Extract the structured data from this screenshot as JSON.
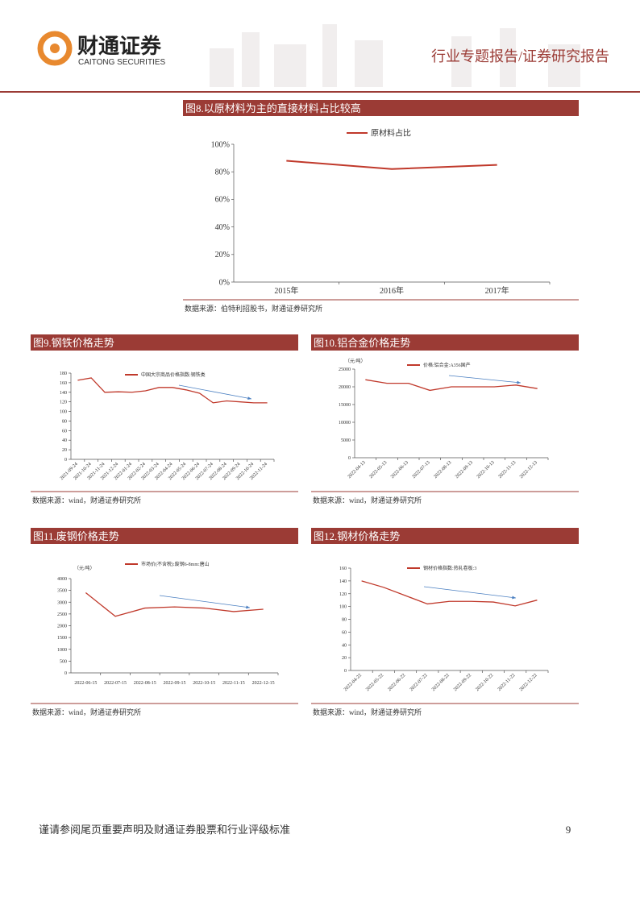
{
  "header": {
    "brand": "财通证券",
    "brand_en": "CAITONG SECURITIES",
    "report_type": "行业专题报告/证券研究报告"
  },
  "chart_data": [
    {
      "type": "line",
      "title": "图8.以原材料为主的直接材料占比较高",
      "source": "数据来源：伯特利招股书，财通证券研究所",
      "categories": [
        "2015年",
        "2016年",
        "2017年"
      ],
      "series": [
        {
          "name": "原材料占比",
          "color": "#c0392b",
          "values": [
            88,
            82,
            85
          ]
        }
      ],
      "ylim": [
        0,
        100
      ],
      "yticks": [
        {
          "value": 0,
          "label": "0%"
        },
        {
          "value": 20,
          "label": "20%"
        },
        {
          "value": 40,
          "label": "40%"
        },
        {
          "value": 60,
          "label": "60%"
        },
        {
          "value": 80,
          "label": "80%"
        },
        {
          "value": 100,
          "label": "100%"
        }
      ]
    },
    {
      "type": "line",
      "title": "图9.钢铁价格走势",
      "source": "数据来源：wind，财通证券研究所",
      "categories": [
        "2021-09-24",
        "2021-10-24",
        "2021-11-24",
        "2021-12-24",
        "2022-01-24",
        "2022-02-24",
        "2022-03-24",
        "2022-04-24",
        "2022-05-24",
        "2022-06-24",
        "2022-07-24",
        "2022-08-24",
        "2022-09-24",
        "2022-10-24",
        "2022-11-24"
      ],
      "series": [
        {
          "name": "中国大宗商品价格指数:钢铁类",
          "color": "#c0392b",
          "values": [
            165,
            170,
            140,
            141,
            140,
            143,
            150,
            150,
            145,
            138,
            118,
            122,
            120,
            118,
            118
          ]
        }
      ],
      "ylim": [
        0,
        180
      ],
      "yticks": [
        0,
        20,
        40,
        60,
        80,
        100,
        120,
        140,
        160,
        180
      ]
    },
    {
      "type": "line",
      "title": "图10.铝合金价格走势",
      "source": "数据来源：wind，财通证券研究所",
      "unit": "（元/吨）",
      "categories": [
        "2022-04-13",
        "2022-05-13",
        "2022-06-13",
        "2022-07-13",
        "2022-08-13",
        "2022-09-13",
        "2022-10-13",
        "2022-11-13",
        "2022-12-13"
      ],
      "series": [
        {
          "name": "价格:铝合金:A356国产",
          "color": "#c0392b",
          "values": [
            22000,
            21000,
            21000,
            19000,
            20000,
            20000,
            20000,
            20500,
            19500
          ]
        }
      ],
      "ylim": [
        0,
        25000
      ],
      "yticks": [
        0,
        5000,
        10000,
        15000,
        20000,
        25000
      ]
    },
    {
      "type": "line",
      "title": "图11.废钢价格走势",
      "source": "数据来源：wind，财通证券研究所",
      "unit": "（元/吨）",
      "categories": [
        "2022-06-15",
        "2022-07-15",
        "2022-08-15",
        "2022-09-15",
        "2022-10-15",
        "2022-11-15",
        "2022-12-15"
      ],
      "series": [
        {
          "name": "市场价(不含税):废钢6-8mm:唐山",
          "color": "#c0392b",
          "values": [
            3400,
            2400,
            2750,
            2800,
            2750,
            2600,
            2700
          ]
        }
      ],
      "ylim": [
        0,
        4000
      ],
      "yticks": [
        0,
        500,
        1000,
        1500,
        2000,
        2500,
        3000,
        3500,
        4000
      ]
    },
    {
      "type": "line",
      "title": "图12.钢材价格走势",
      "source": "数据来源：wind，财通证券研究所",
      "categories": [
        "2022-04-22",
        "2022-05-22",
        "2022-06-22",
        "2022-07-22",
        "2022-08-22",
        "2022-09-22",
        "2022-10-22",
        "2022-11-22",
        "2022-12-22"
      ],
      "series": [
        {
          "name": "钢材价格指数:热轧卷板:3",
          "color": "#c0392b",
          "values": [
            140,
            130,
            117,
            104,
            108,
            108,
            107,
            101,
            110
          ]
        }
      ],
      "ylim": [
        0,
        160
      ],
      "yticks": [
        0,
        20,
        40,
        60,
        80,
        100,
        120,
        140,
        160
      ]
    }
  ],
  "footer": {
    "disclaimer": "谨请参阅尾页重要声明及财通证券股票和行业评级标准",
    "page": "9"
  }
}
